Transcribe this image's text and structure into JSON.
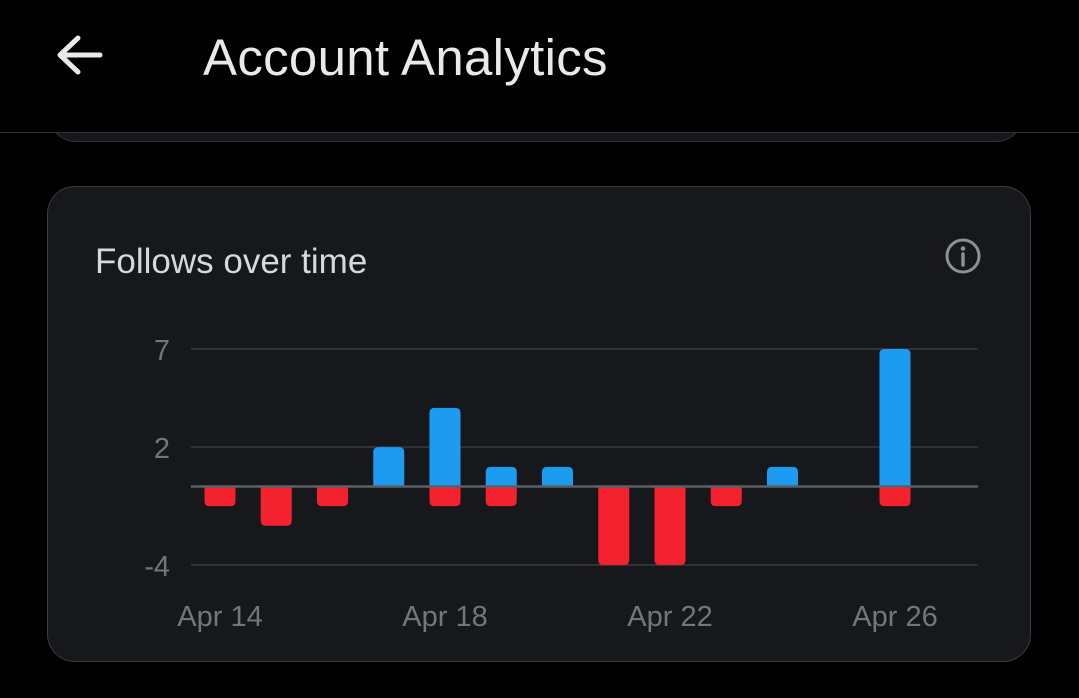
{
  "header": {
    "title": "Account Analytics",
    "back_icon": "arrow-left-icon"
  },
  "card": {
    "title": "Follows over time",
    "info_icon": "info-circle-icon"
  },
  "colors": {
    "follows": "#1d9bf0",
    "unfollows": "#f4212e",
    "grid": "#2f3336",
    "baseline": "#5b6066"
  },
  "chart_data": {
    "type": "bar",
    "categories": [
      "Apr 14",
      "Apr 15",
      "Apr 16",
      "Apr 17",
      "Apr 18",
      "Apr 19",
      "Apr 20",
      "Apr 21",
      "Apr 22",
      "Apr 23",
      "Apr 24",
      "Apr 25",
      "Apr 26"
    ],
    "series": [
      {
        "values": [
          0,
          0,
          0,
          2,
          4,
          1,
          1,
          0,
          0,
          0,
          1,
          0,
          7
        ]
      },
      {
        "values": [
          -1,
          -2,
          -1,
          0,
          -1,
          -1,
          0,
          -4,
          -4,
          -1,
          0,
          0,
          -1
        ]
      }
    ],
    "x_tick_labels": [
      "Apr 14",
      "Apr 18",
      "Apr 22",
      "Apr 26"
    ],
    "y_ticks": [
      7,
      2,
      -4
    ],
    "ylim": [
      -4,
      7
    ],
    "grid": true
  }
}
